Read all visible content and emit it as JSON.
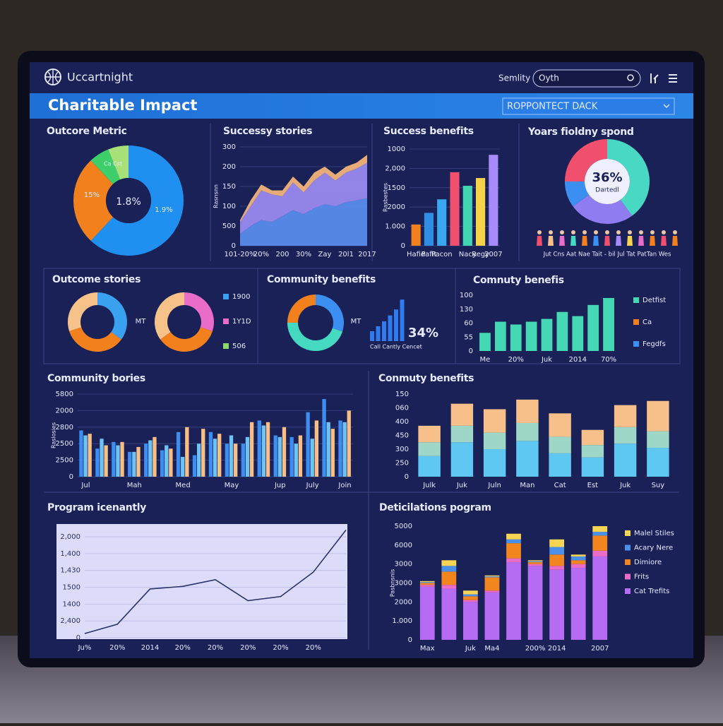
{
  "header": {
    "brand": "Uccartnight",
    "search_label": "Semlity",
    "search_value": "Oyth",
    "title": "Charitable Impact",
    "dropdown": "ROPPONTECT DACK"
  },
  "chart_data": [
    {
      "type": "pie",
      "title": "Outcore Metric",
      "values": [
        62,
        26,
        6,
        6
      ],
      "colors": [
        "#1f8ff0",
        "#f2811d",
        "#3ecf6a",
        "#a8e07a"
      ],
      "annotations": [
        "1.8%",
        "15%",
        "1.9%",
        "Ca Cst"
      ]
    },
    {
      "type": "area",
      "title": "Successy stories",
      "y_label": "Rasnsnn",
      "categories": [
        "101-20%",
        null,
        "20%",
        null,
        "200",
        null,
        "30%",
        null,
        "Zay",
        null,
        "20l1",
        null,
        "2017"
      ],
      "series": [
        {
          "color": "#5b8ff0",
          "values": [
            0.6,
            1.0,
            1.3,
            1.2,
            1.5,
            1.8,
            1.6,
            1.9,
            2.1,
            2.0,
            2.2,
            2.3,
            2.4
          ]
        },
        {
          "color": "#9c8cf2",
          "values": [
            0.6,
            1.0,
            1.5,
            1.4,
            1.0,
            1.4,
            1.1,
            1.4,
            1.6,
            1.3,
            1.5,
            1.6,
            1.8
          ]
        },
        {
          "color": "#f7b77a",
          "values": [
            0.1,
            0.3,
            0.3,
            0.2,
            0.3,
            0.3,
            0.3,
            0.4,
            0.3,
            0.3,
            0.3,
            0.3,
            0.4
          ]
        }
      ],
      "ylim": [
        0,
        5
      ],
      "yticks": [
        {
          "value": 0,
          "label": "0"
        },
        {
          "value": 1,
          "label": "500"
        },
        {
          "value": 2,
          "label": "100"
        },
        {
          "value": 3,
          "label": "150"
        },
        {
          "value": 4,
          "label": "200"
        },
        {
          "value": 5,
          "label": "300"
        }
      ],
      "grid": true
    },
    {
      "type": "bar",
      "title": "Success benefits",
      "y_label": "Rasbestes",
      "categories": [
        "Hafid",
        "Pafit",
        "Pacon",
        null,
        "Nacy",
        "Regy",
        "2007"
      ],
      "values": [
        1.1,
        1.7,
        2.4,
        3.8,
        3.1,
        3.5,
        4.7
      ],
      "colors": [
        "#f2811d",
        "#2f8de4",
        "#3aa8f0",
        "#f0506e",
        "#41d6b0",
        "#f5d24a",
        "#a78bfa"
      ],
      "ylim": [
        0,
        5
      ],
      "yticks": [
        {
          "value": 0,
          "label": "0"
        },
        {
          "value": 1,
          "label": "1.000"
        },
        {
          "value": 2,
          "label": "2000"
        },
        {
          "value": 3,
          "label": "1500"
        },
        {
          "value": 4,
          "label": "2,000"
        },
        {
          "value": 5,
          "label": "1000"
        }
      ],
      "grid": true
    },
    {
      "type": "pie",
      "title": "Yoars fioldny spond",
      "values": [
        40,
        25,
        10,
        25
      ],
      "colors": [
        "#49d8c4",
        "#8f7cf0",
        "#3a8ff0",
        "#f0506e"
      ],
      "center_value": "36%",
      "center_label": "Dartedl",
      "footer": "Jut Cns Aat Nae Tait - bil Jul Tat PatTan Wes"
    },
    {
      "type": "donut-pair",
      "title": "Outcome stories",
      "center_label": "MT",
      "rings": [
        {
          "values": [
            35,
            35,
            30
          ],
          "colors": [
            "#3aa0f0",
            "#f2811d",
            "#f7c28a"
          ]
        },
        {
          "values": [
            30,
            35,
            35
          ],
          "colors": [
            "#e86cc8",
            "#f2811d",
            "#f7c28a"
          ]
        }
      ],
      "legend": [
        {
          "label": "1900",
          "color": "#3aa0f0"
        },
        {
          "label": "1Y1D",
          "color": "#e86cc8"
        },
        {
          "label": "506",
          "color": "#8fd96a"
        }
      ]
    },
    {
      "type": "donut-bars",
      "title": "Community benefits",
      "center_label": "MT",
      "ring": {
        "values": [
          30,
          45,
          25
        ],
        "colors": [
          "#3a8ff0",
          "#44d9c0",
          "#f2811d"
        ]
      },
      "bars": {
        "values": [
          1,
          1.5,
          2,
          2.6,
          3.2,
          4.2
        ],
        "color": "#2f7cf0"
      },
      "stat": "34%",
      "stat_label": "Call Cantly Cencet"
    },
    {
      "type": "bar",
      "title": "Comnuty benefis",
      "categories": [
        "Me",
        null,
        "20%",
        null,
        "Juk",
        null,
        "2014",
        null,
        "70%"
      ],
      "values": [
        1.3,
        2.1,
        1.9,
        2.1,
        2.3,
        2.8,
        2.5,
        3.3,
        3.8
      ],
      "color": "#44d9b4",
      "ylim": [
        0,
        4
      ],
      "yticks": [
        {
          "value": 0,
          "label": "0"
        },
        {
          "value": 1,
          "label": "55"
        },
        {
          "value": 2,
          "label": "60"
        },
        {
          "value": 3,
          "label": "130"
        },
        {
          "value": 4,
          "label": "100"
        }
      ],
      "grid": false,
      "legend": [
        {
          "label": "Detfist",
          "color": "#44d9b4"
        },
        {
          "label": "Ca",
          "color": "#f2811d"
        },
        {
          "label": "Fegdfs",
          "color": "#3a8ff0"
        }
      ]
    },
    {
      "type": "grouped-bar",
      "title": "Community bories",
      "y_label": "Raslosies",
      "categories": [
        "Jul",
        null,
        null,
        "Mah",
        null,
        null,
        "Med",
        null,
        null,
        "May",
        null,
        null,
        "Jup",
        null,
        "July",
        null,
        "Join"
      ],
      "series": [
        {
          "color": "#3d8ef0",
          "values": [
            2.8,
            1.7,
            2.1,
            1.5,
            2.0,
            1.6,
            2.7,
            1.3,
            2.7,
            2.0,
            2.0,
            3.4,
            2.5,
            2.4,
            3.9,
            4.7,
            3.4
          ]
        },
        {
          "color": "#6ec3f5",
          "values": [
            2.5,
            2.3,
            1.9,
            1.5,
            2.2,
            1.9,
            1.2,
            2.0,
            2.3,
            2.5,
            2.4,
            3.1,
            2.4,
            2.0,
            2.3,
            3.3,
            3.3
          ]
        },
        {
          "color": "#f7bf86",
          "values": [
            2.6,
            1.9,
            2.1,
            1.8,
            2.4,
            1.7,
            3.0,
            2.9,
            2.6,
            2.0,
            3.3,
            3.3,
            3.0,
            2.5,
            3.4,
            2.9,
            4.0
          ]
        }
      ],
      "ylim": [
        0,
        5
      ],
      "yticks": [
        {
          "value": 0,
          "label": "0"
        },
        {
          "value": 1,
          "label": "2500"
        },
        {
          "value": 2,
          "label": "2500"
        },
        {
          "value": 3,
          "label": "2800"
        },
        {
          "value": 4,
          "label": "2000"
        },
        {
          "value": 5,
          "label": "5800"
        }
      ],
      "grid": true
    },
    {
      "type": "stacked-bar",
      "title": "Conmuty benefits",
      "categories": [
        "Julk",
        "Juk",
        "Juln",
        "Man",
        "Cat",
        "Est",
        "Juk",
        "Suy"
      ],
      "series": [
        {
          "color": "#5ec8f2",
          "values": [
            1.5,
            2.5,
            2.0,
            2.6,
            1.7,
            1.4,
            2.4,
            2.1
          ]
        },
        {
          "color": "#9ed6c8",
          "values": [
            1.0,
            1.2,
            1.2,
            1.3,
            1.2,
            0.9,
            1.2,
            1.2
          ]
        },
        {
          "color": "#f7c08a",
          "values": [
            1.2,
            1.6,
            1.7,
            1.7,
            1.7,
            1.1,
            1.6,
            2.2
          ]
        }
      ],
      "ylim": [
        0,
        6
      ],
      "yticks": [
        {
          "value": 0,
          "label": "0"
        },
        {
          "value": 1,
          "label": "250"
        },
        {
          "value": 2,
          "label": "300"
        },
        {
          "value": 3,
          "label": "450"
        },
        {
          "value": 4,
          "label": "400"
        },
        {
          "value": 5,
          "label": "060"
        },
        {
          "value": 6,
          "label": "150"
        }
      ],
      "grid": false
    },
    {
      "type": "line",
      "title": "Program icenantly",
      "categories": [
        "Ju%",
        "20%",
        "2014",
        "20%",
        "20%",
        "20%",
        "20%",
        "20%",
        null
      ],
      "values": [
        0.25,
        0.8,
        2.9,
        3.05,
        3.45,
        2.2,
        2.45,
        3.9,
        6.4
      ],
      "color": "#2a3268",
      "ylim": [
        0,
        6.8
      ],
      "yticks": [
        {
          "value": 0,
          "label": "0"
        },
        {
          "value": 1,
          "label": "2,400"
        },
        {
          "value": 2,
          "label": "1400"
        },
        {
          "value": 3,
          "label": "1500"
        },
        {
          "value": 4,
          "label": "1,430"
        },
        {
          "value": 5,
          "label": "1,400"
        },
        {
          "value": 6,
          "label": "2,000"
        }
      ],
      "grid": true
    },
    {
      "type": "stacked-bar",
      "title": "Deticilations pogram",
      "y_label": "Pasbnsnis",
      "categories": [
        "Max",
        null,
        "Juk",
        "Ma4",
        null,
        "200%",
        "2014",
        null,
        "2007"
      ],
      "series": [
        {
          "name": "Cat Trefits",
          "color": "#b56cf2",
          "values": [
            2.8,
            2.7,
            2.0,
            2.5,
            4.1,
            3.9,
            3.7,
            3.8,
            4.4
          ]
        },
        {
          "name": "Frits",
          "color": "#e86cc8",
          "values": [
            0.1,
            0.2,
            0.1,
            0.1,
            0.2,
            0.1,
            0.2,
            0.2,
            0.3
          ]
        },
        {
          "name": "Dimiore",
          "color": "#f2851e",
          "values": [
            0.1,
            0.7,
            0.2,
            0.7,
            0.8,
            0.1,
            0.6,
            0.2,
            0.8
          ]
        },
        {
          "name": "Acary Nere",
          "color": "#4a90e8",
          "values": [
            0.05,
            0.3,
            0.1,
            0.05,
            0.2,
            0.05,
            0.4,
            0.2,
            0.2
          ]
        },
        {
          "name": "Malel Stiles",
          "color": "#f7d553",
          "values": [
            0.05,
            0.3,
            0.2,
            0.05,
            0.3,
            0.05,
            0.4,
            0.1,
            0.3
          ]
        }
      ],
      "ylim": [
        0,
        6
      ],
      "yticks": [
        {
          "value": 0,
          "label": "0"
        },
        {
          "value": 1,
          "label": "1.000"
        },
        {
          "value": 2,
          "label": "2000"
        },
        {
          "value": 3,
          "label": "3000"
        },
        {
          "value": 4,
          "label": "3000"
        },
        {
          "value": 5,
          "label": "6000"
        },
        {
          "value": 6,
          "label": "5000"
        }
      ],
      "grid": false
    }
  ]
}
